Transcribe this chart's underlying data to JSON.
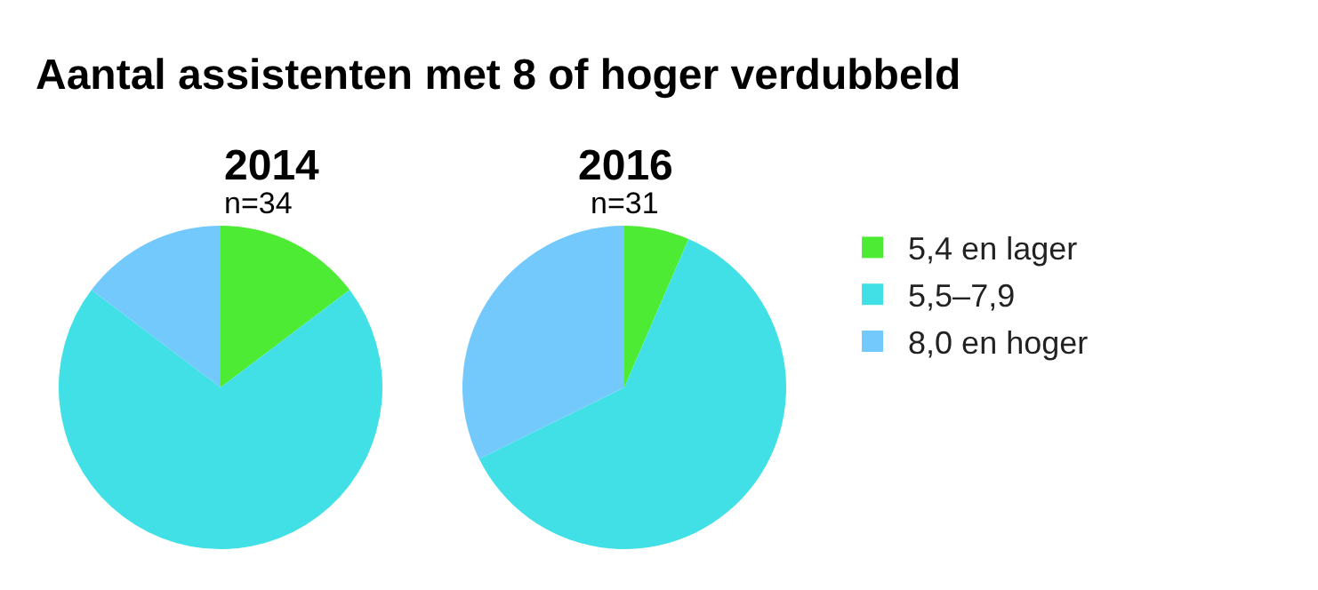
{
  "chart_data": [
    {
      "type": "pie",
      "title": "2014",
      "subtitle": "n=34",
      "annotations": [
        "Aantal assistenten met 8 of hoger verdubbeld"
      ],
      "categories": [
        "5,4 en lager",
        "5,5–7,9",
        "8,0 en hoger"
      ],
      "values": [
        14.7,
        70.6,
        14.7
      ],
      "colors": [
        "#4deb33",
        "#40e0e6",
        "#73c9fb"
      ],
      "legend": "right"
    },
    {
      "type": "pie",
      "title": "2016",
      "subtitle": "n=31",
      "categories": [
        null,
        null,
        null
      ],
      "values": [
        6.5,
        61.2,
        32.3
      ],
      "colors": [
        "#4deb33",
        "#40e0e6",
        "#73c9fb"
      ]
    }
  ]
}
